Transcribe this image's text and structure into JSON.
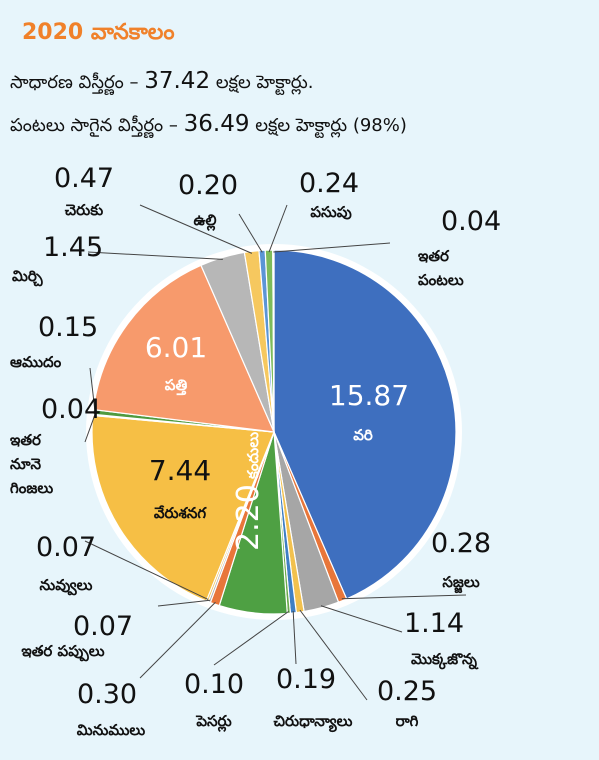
{
  "header": {
    "title": "2020 వానకాలం",
    "line1_label": "సాధారణ విస్తీర్ణం –",
    "line1_value": "37.42",
    "line1_unit": "లక్షల హెక్టార్లు.",
    "line2_label": "పంటలు సాగైన విస్తీర్ణం –",
    "line2_value": "36.49",
    "line2_unit": "లక్షల హెక్టార్లు (98%)"
  },
  "chart_data": {
    "type": "pie",
    "start": "12 o'clock",
    "direction": "clockwise",
    "slices": [
      {
        "label": "వరి",
        "value": 15.87,
        "value_text": "15.87",
        "color": "#3e6fbf"
      },
      {
        "label": "సజ్జలు",
        "value": 0.28,
        "value_text": "0.28",
        "color": "#e8763a"
      },
      {
        "label": "మొక్కజొన్న",
        "value": 1.14,
        "value_text": "1.14",
        "color": "#a6a6a6"
      },
      {
        "label": "రాగి",
        "value": 0.25,
        "value_text": "0.25",
        "color": "#f2c14e"
      },
      {
        "label": "చిరుధాన్యాలు",
        "value": 0.19,
        "value_text": "0.19",
        "color": "#3f7fc4"
      },
      {
        "label": "పెసర్లు",
        "value": 0.1,
        "value_text": "0.10",
        "color": "#6aaa4c"
      },
      {
        "label": "కందులు",
        "value": 2.2,
        "value_text": "2.20",
        "color": "#4ea043"
      },
      {
        "label": "మినుములు",
        "value": 0.3,
        "value_text": "0.30",
        "color": "#e8763a"
      },
      {
        "label": "ఇతర పప్పులు",
        "value": 0.07,
        "value_text": "0.07",
        "color": "#a6a6a6"
      },
      {
        "label": "నువ్వులు",
        "value": 0.07,
        "value_text": "0.07",
        "color": "#f2c14e"
      },
      {
        "label": "వేరుశనగ",
        "value": 7.44,
        "value_text": "7.44",
        "color": "#f6bf45"
      },
      {
        "label": "ఇతర నూనె గింజలు",
        "value": 0.04,
        "value_text": "0.04",
        "color": "#3f7fc4"
      },
      {
        "label": "ఆముదం",
        "value": 0.15,
        "value_text": "0.15",
        "color": "#4f9a3f"
      },
      {
        "label": "పత్తి",
        "value": 6.01,
        "value_text": "6.01",
        "color": "#f79a6c"
      },
      {
        "label": "మిర్చి",
        "value": 1.45,
        "value_text": "1.45",
        "color": "#b7b7b7"
      },
      {
        "label": "చెరుకు",
        "value": 0.47,
        "value_text": "0.47",
        "color": "#f6c85f"
      },
      {
        "label": "ఉల్లి",
        "value": 0.2,
        "value_text": "0.20",
        "color": "#5b95d6"
      },
      {
        "label": "పసుపు",
        "value": 0.24,
        "value_text": "0.24",
        "color": "#7dbb5b"
      },
      {
        "label": "ఇతర పంటలు",
        "value": 0.04,
        "value_text": "0.04",
        "color": "#3a6db5"
      }
    ]
  }
}
